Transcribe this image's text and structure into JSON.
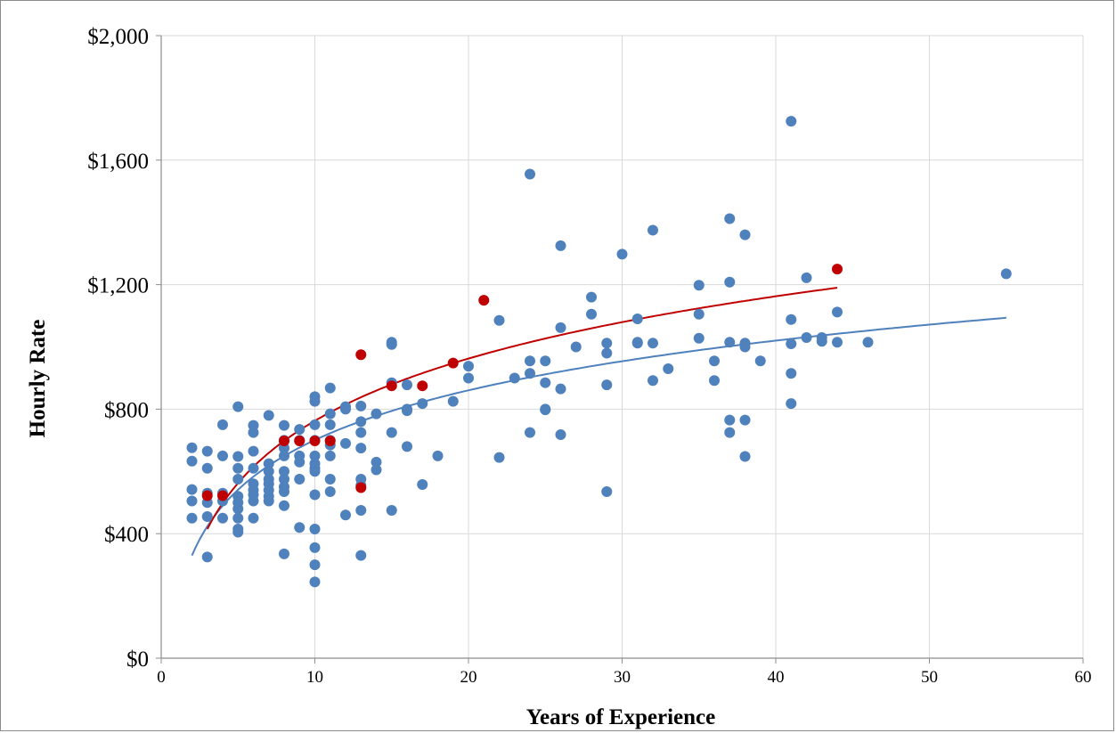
{
  "chart_data": {
    "type": "scatter",
    "title": "",
    "xlabel": "Years of Experience",
    "ylabel": "Hourly Rate",
    "xlim": [
      0,
      60
    ],
    "ylim": [
      0,
      2000
    ],
    "x_ticks": [
      0,
      10,
      20,
      30,
      40,
      50,
      60
    ],
    "x_tick_labels": [
      "0",
      "10",
      "20",
      "30",
      "40",
      "50",
      "60"
    ],
    "y_ticks": [
      0,
      400,
      800,
      1200,
      1600,
      2000
    ],
    "y_tick_labels": [
      "$0",
      "$400",
      "$800",
      "$1,200",
      "$1,600",
      "$2,000"
    ],
    "grid": true,
    "legend": "none",
    "series": [
      {
        "color": "#4f81bd",
        "points": [
          [
            2,
            676
          ],
          [
            2,
            633
          ],
          [
            2,
            542
          ],
          [
            2,
            505
          ],
          [
            2,
            450
          ],
          [
            3,
            665
          ],
          [
            3,
            610
          ],
          [
            3,
            530
          ],
          [
            3,
            500
          ],
          [
            3,
            455
          ],
          [
            3,
            325
          ],
          [
            4,
            750
          ],
          [
            4,
            650
          ],
          [
            4,
            530
          ],
          [
            4,
            505
          ],
          [
            4,
            450
          ],
          [
            5,
            808
          ],
          [
            5,
            648
          ],
          [
            5,
            610
          ],
          [
            5,
            575
          ],
          [
            5,
            520
          ],
          [
            5,
            500
          ],
          [
            5,
            480
          ],
          [
            5,
            450
          ],
          [
            5,
            415
          ],
          [
            5,
            405
          ],
          [
            6,
            748
          ],
          [
            6,
            725
          ],
          [
            6,
            665
          ],
          [
            6,
            610
          ],
          [
            6,
            560
          ],
          [
            6,
            540
          ],
          [
            6,
            525
          ],
          [
            6,
            505
          ],
          [
            6,
            450
          ],
          [
            7,
            780
          ],
          [
            7,
            625
          ],
          [
            7,
            600
          ],
          [
            7,
            575
          ],
          [
            7,
            560
          ],
          [
            7,
            540
          ],
          [
            7,
            520
          ],
          [
            7,
            505
          ],
          [
            8,
            748
          ],
          [
            8,
            700
          ],
          [
            8,
            675
          ],
          [
            8,
            650
          ],
          [
            8,
            600
          ],
          [
            8,
            575
          ],
          [
            8,
            550
          ],
          [
            8,
            535
          ],
          [
            8,
            490
          ],
          [
            8,
            335
          ],
          [
            9,
            735
          ],
          [
            9,
            700
          ],
          [
            9,
            650
          ],
          [
            9,
            630
          ],
          [
            9,
            575
          ],
          [
            9,
            420
          ],
          [
            10,
            840
          ],
          [
            10,
            825
          ],
          [
            10,
            750
          ],
          [
            10,
            700
          ],
          [
            10,
            650
          ],
          [
            10,
            625
          ],
          [
            10,
            610
          ],
          [
            10,
            600
          ],
          [
            10,
            525
          ],
          [
            10,
            415
          ],
          [
            10,
            355
          ],
          [
            10,
            300
          ],
          [
            10,
            245
          ],
          [
            11,
            868
          ],
          [
            11,
            785
          ],
          [
            11,
            750
          ],
          [
            11,
            700
          ],
          [
            11,
            685
          ],
          [
            11,
            650
          ],
          [
            11,
            575
          ],
          [
            11,
            535
          ],
          [
            12,
            808
          ],
          [
            12,
            800
          ],
          [
            12,
            690
          ],
          [
            12,
            460
          ],
          [
            13,
            810
          ],
          [
            13,
            760
          ],
          [
            13,
            725
          ],
          [
            13,
            675
          ],
          [
            13,
            575
          ],
          [
            13,
            555
          ],
          [
            13,
            475
          ],
          [
            13,
            330
          ],
          [
            14,
            785
          ],
          [
            14,
            630
          ],
          [
            14,
            605
          ],
          [
            15,
            1015
          ],
          [
            15,
            1008
          ],
          [
            15,
            885
          ],
          [
            15,
            725
          ],
          [
            15,
            475
          ],
          [
            16,
            878
          ],
          [
            16,
            800
          ],
          [
            16,
            795
          ],
          [
            16,
            680
          ],
          [
            17,
            818
          ],
          [
            17,
            558
          ],
          [
            18,
            650
          ],
          [
            19,
            825
          ],
          [
            20,
            938
          ],
          [
            20,
            900
          ],
          [
            22,
            1085
          ],
          [
            22,
            645
          ],
          [
            23,
            900
          ],
          [
            24,
            1555
          ],
          [
            24,
            955
          ],
          [
            24,
            915
          ],
          [
            24,
            725
          ],
          [
            25,
            955
          ],
          [
            25,
            885
          ],
          [
            25,
            800
          ],
          [
            25,
            798
          ],
          [
            26,
            1325
          ],
          [
            26,
            1062
          ],
          [
            26,
            865
          ],
          [
            26,
            718
          ],
          [
            27,
            1000
          ],
          [
            28,
            1160
          ],
          [
            28,
            1105
          ],
          [
            29,
            1012
          ],
          [
            29,
            980
          ],
          [
            29,
            878
          ],
          [
            29,
            535
          ],
          [
            30,
            1298
          ],
          [
            31,
            1090
          ],
          [
            31,
            1015
          ],
          [
            31,
            1012
          ],
          [
            32,
            1375
          ],
          [
            32,
            1012
          ],
          [
            32,
            892
          ],
          [
            33,
            930
          ],
          [
            35,
            1198
          ],
          [
            35,
            1105
          ],
          [
            35,
            1028
          ],
          [
            36,
            955
          ],
          [
            36,
            892
          ],
          [
            37,
            1412
          ],
          [
            37,
            1208
          ],
          [
            37,
            1015
          ],
          [
            37,
            765
          ],
          [
            37,
            725
          ],
          [
            38,
            1360
          ],
          [
            38,
            1012
          ],
          [
            38,
            1000
          ],
          [
            38,
            765
          ],
          [
            38,
            648
          ],
          [
            39,
            955
          ],
          [
            41,
            1725
          ],
          [
            41,
            1088
          ],
          [
            41,
            1010
          ],
          [
            41,
            915
          ],
          [
            41,
            818
          ],
          [
            42,
            1222
          ],
          [
            42,
            1030
          ],
          [
            43,
            1030
          ],
          [
            43,
            1018
          ],
          [
            44,
            1112
          ],
          [
            44,
            1015
          ],
          [
            46,
            1015
          ],
          [
            55,
            1235
          ]
        ]
      },
      {
        "color": "#c00000",
        "points": [
          [
            3,
            522
          ],
          [
            4,
            522
          ],
          [
            8,
            698
          ],
          [
            9,
            698
          ],
          [
            10,
            698
          ],
          [
            11,
            698
          ],
          [
            13,
            975
          ],
          [
            13,
            548
          ],
          [
            15,
            875
          ],
          [
            17,
            875
          ],
          [
            19,
            948
          ],
          [
            21,
            1150
          ],
          [
            44,
            1250
          ]
        ]
      }
    ],
    "trendlines": [
      {
        "type": "logarithmic",
        "color": "#4f81bd",
        "x_range": [
          2,
          55
        ],
        "a": 330,
        "b": 230.4
      },
      {
        "type": "logarithmic",
        "color": "#c00000",
        "x_range": [
          3,
          44
        ],
        "a": 415,
        "b": 288.6
      }
    ]
  }
}
